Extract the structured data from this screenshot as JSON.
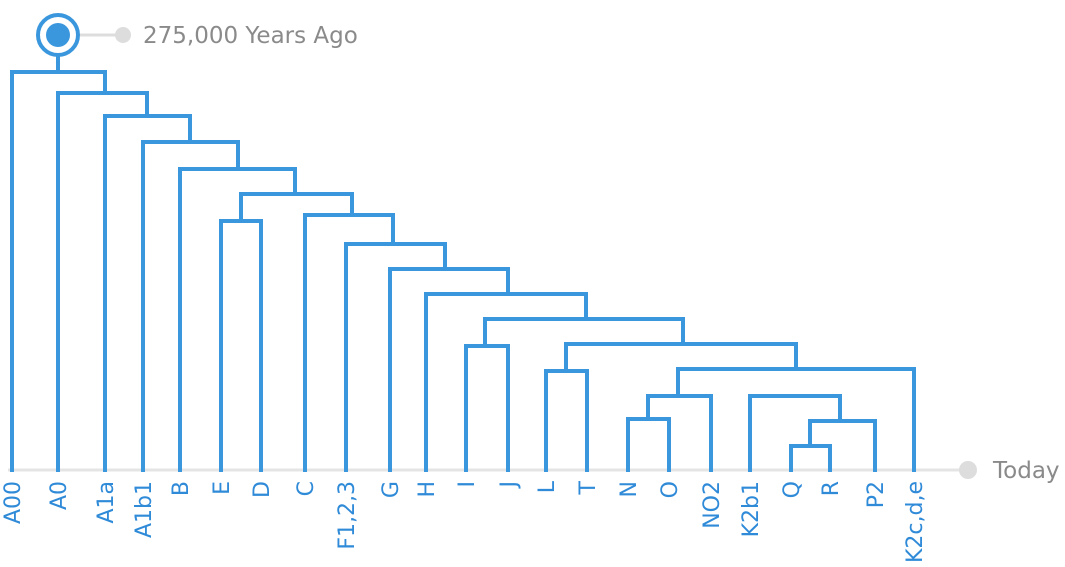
{
  "timeline": {
    "top_label": "275,000 Years Ago",
    "bottom_label": "Today"
  },
  "tree": {
    "leaves": [
      "A00",
      "A0",
      "A1a",
      "A1b1",
      "B",
      "E",
      "D",
      "C",
      "F1,2,3",
      "G",
      "H",
      "I",
      "J",
      "L",
      "T",
      "N",
      "O",
      "NO2",
      "K2b1",
      "Q",
      "R",
      "P2",
      "K2c,d,e"
    ],
    "clades": [
      {
        "members": [
          "A00"
        ],
        "rest": [
          "A0",
          "A1a",
          "A1b1",
          "B",
          "E",
          "D",
          "C",
          "F1,2,3",
          "G",
          "H",
          "I",
          "J",
          "L",
          "T",
          "N",
          "O",
          "NO2",
          "K2b1",
          "Q",
          "R",
          "P2",
          "K2c,d,e"
        ]
      }
    ]
  },
  "colors": {
    "branch": "#3a97dd",
    "leaf_text": "#2f8ad8",
    "axis": "#e4e4e4",
    "marker_dot": "#dddddd",
    "time_text": "#8a8a8a"
  },
  "icons": {
    "root_marker": "root-target-icon",
    "today_marker": "today-dot-icon"
  }
}
